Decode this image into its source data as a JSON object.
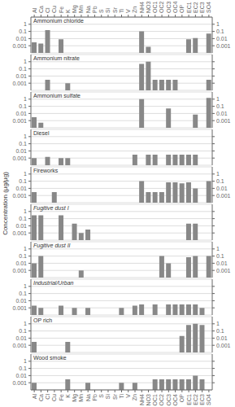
{
  "chart_data": [
    {
      "type": "bar",
      "title": "Ammonium chloride",
      "ylabel": "Concentration (μg/μg)",
      "categories": [
        "Al",
        "Ca",
        "Cl",
        "Cu",
        "Fe",
        "K",
        "Mg",
        "Mn",
        "Na",
        "Pb",
        "S",
        "Si",
        "Sr",
        "Ti",
        "V",
        "Zn",
        "NH4",
        "NO3",
        "OC1",
        "OC2",
        "OC3",
        "OC4",
        "OP",
        "EC1",
        "EC2",
        "EC3",
        "SO4"
      ],
      "values": [
        0.003,
        0.002,
        0.15,
        null,
        0.008,
        null,
        null,
        null,
        null,
        null,
        null,
        null,
        null,
        0.0001,
        null,
        null,
        0.1,
        0.0007,
        null,
        null,
        null,
        null,
        null,
        0.008,
        0.012,
        null,
        0.05
      ],
      "color": "#888888",
      "log": "y",
      "ylim": [
        0.0001,
        10
      ],
      "yticks": [
        0.001,
        0.01,
        0.1,
        1
      ],
      "grid": true
    },
    {
      "type": "bar",
      "title": "Ammonium nitrate",
      "categories": [
        "Al",
        "Ca",
        "Cl",
        "Cu",
        "Fe",
        "K",
        "Mg",
        "Mn",
        "Na",
        "Pb",
        "S",
        "Si",
        "Sr",
        "Ti",
        "V",
        "Zn",
        "NH4",
        "NO3",
        "OC1",
        "OC2",
        "OC3",
        "OC4",
        "OP",
        "EC1",
        "EC2",
        "EC3",
        "SO4"
      ],
      "values": [
        null,
        null,
        0.003,
        null,
        null,
        0.001,
        null,
        null,
        null,
        null,
        null,
        null,
        null,
        null,
        null,
        null,
        0.5,
        1,
        0.003,
        0.003,
        0.003,
        0.003,
        null,
        null,
        null,
        null,
        0.003
      ],
      "color": "#888888",
      "log": "y",
      "ylim": [
        0.0001,
        10
      ],
      "yticks": [
        0.001,
        0.01,
        0.1,
        1
      ],
      "grid": true,
      "tick_labels": "y"
    },
    {
      "type": "bar",
      "title": "Ammonium sulfate",
      "categories": [
        "Al",
        "Ca",
        "Cl",
        "Cu",
        "Fe",
        "K",
        "Mg",
        "Mn",
        "Na",
        "Pb",
        "S",
        "Si",
        "Sr",
        "Ti",
        "V",
        "Zn",
        "NH4",
        "NO3",
        "OC1",
        "OC2",
        "OC3",
        "OC4",
        "OP",
        "EC1",
        "EC2",
        "EC3",
        "SO4"
      ],
      "values": [
        0.003,
        0.0005,
        null,
        null,
        null,
        null,
        null,
        null,
        null,
        null,
        null,
        null,
        null,
        null,
        null,
        null,
        1,
        null,
        null,
        null,
        0.05,
        null,
        null,
        null,
        0.007,
        null,
        1.5
      ],
      "color": "#888888",
      "log": "y",
      "ylim": [
        0.0001,
        10
      ],
      "yticks": [
        0.001,
        0.01,
        0.1,
        1
      ],
      "grid": true,
      "tick_labels": "y"
    },
    {
      "type": "bar",
      "title": "Diesel",
      "categories": [
        "Al",
        "Ca",
        "Cl",
        "Cu",
        "Fe",
        "K",
        "Mg",
        "Mn",
        "Na",
        "Pb",
        "S",
        "Si",
        "Sr",
        "Ti",
        "V",
        "Zn",
        "NH4",
        "NO3",
        "OC1",
        "OC2",
        "OC3",
        "OC4",
        "OP",
        "EC1",
        "EC2",
        "EC3",
        "SO4"
      ],
      "values": [
        0.001,
        null,
        0.0015,
        null,
        0.001,
        0.001,
        null,
        null,
        null,
        null,
        null,
        null,
        null,
        null,
        null,
        0.003,
        null,
        0.003,
        0.003,
        null,
        0.003,
        0.003,
        0.003,
        0.003,
        0.003,
        null,
        null
      ],
      "color": "#888888",
      "log": "y",
      "ylim": [
        0.0001,
        10
      ],
      "yticks": [
        0.001,
        0.01,
        0.1,
        1
      ],
      "grid": true,
      "tick_labels": "y"
    },
    {
      "type": "bar",
      "title": "Fireworks",
      "categories": [
        "Al",
        "Ca",
        "Cl",
        "Cu",
        "Fe",
        "K",
        "Mg",
        "Mn",
        "Na",
        "Pb",
        "S",
        "Si",
        "Sr",
        "Ti",
        "V",
        "Zn",
        "NH4",
        "NO3",
        "OC1",
        "OC2",
        "OC3",
        "OC4",
        "OP",
        "EC1",
        "EC2",
        "EC3",
        "SO4"
      ],
      "values": [
        0.003,
        null,
        null,
        0.003,
        null,
        null,
        null,
        null,
        null,
        null,
        null,
        null,
        null,
        null,
        null,
        null,
        0.1,
        0.003,
        0.003,
        0.003,
        0.07,
        0.07,
        0.05,
        0.07,
        0.01,
        null,
        0.1
      ],
      "color": "#888888",
      "log": "y",
      "ylim": [
        0.0001,
        10
      ],
      "yticks": [
        0.001,
        0.01,
        0.1,
        1
      ],
      "grid": true,
      "tick_labels": "y"
    },
    {
      "type": "bar",
      "title": "Fugitive dust I",
      "categories": [
        "Al",
        "Ca",
        "Cl",
        "Cu",
        "Fe",
        "K",
        "Mg",
        "Mn",
        "Na",
        "Pb",
        "S",
        "Si",
        "Sr",
        "Ti",
        "V",
        "Zn",
        "NH4",
        "NO3",
        "OC1",
        "OC2",
        "OC3",
        "OC4",
        "OP",
        "EC1",
        "EC2",
        "EC3",
        "SO4"
      ],
      "values": [
        0.3,
        0.3,
        null,
        null,
        0.3,
        null,
        0.02,
        0.001,
        0.003,
        null,
        null,
        null,
        null,
        0.0001,
        null,
        null,
        null,
        null,
        null,
        null,
        null,
        null,
        null,
        0.02,
        0.02,
        null,
        null
      ],
      "color": "#888888",
      "log": "y",
      "ylim": [
        0.0001,
        10
      ],
      "yticks": [
        0.001,
        0.01,
        0.1,
        1
      ],
      "grid": true,
      "tick_labels": "y"
    },
    {
      "type": "bar",
      "title": "Fugitive dust II",
      "categories": [
        "Al",
        "Ca",
        "Cl",
        "Cu",
        "Fe",
        "K",
        "Mg",
        "Mn",
        "Na",
        "Pb",
        "S",
        "Si",
        "Sr",
        "Ti",
        "V",
        "Zn",
        "NH4",
        "NO3",
        "OC1",
        "OC2",
        "OC3",
        "OC4",
        "OP",
        "EC1",
        "EC2",
        "EC3",
        "SO4"
      ],
      "values": [
        0.01,
        0.1,
        null,
        null,
        null,
        null,
        null,
        0.001,
        null,
        null,
        null,
        null,
        null,
        null,
        null,
        null,
        null,
        null,
        null,
        0.1,
        0.01,
        null,
        null,
        0.07,
        0.1,
        null,
        0.1
      ],
      "color": "#888888",
      "log": "y",
      "ylim": [
        0.0001,
        10
      ],
      "yticks": [
        0.001,
        0.01,
        0.1,
        1
      ],
      "grid": true,
      "tick_labels": "y"
    },
    {
      "type": "bar",
      "title": "Industrial/Urban",
      "categories": [
        "Al",
        "Ca",
        "Cl",
        "Cu",
        "Fe",
        "K",
        "Mg",
        "Mn",
        "Na",
        "Pb",
        "S",
        "Si",
        "Sr",
        "Ti",
        "V",
        "Zn",
        "NH4",
        "NO3",
        "OC1",
        "OC2",
        "OC3",
        "OC4",
        "OP",
        "EC1",
        "EC2",
        "EC3",
        "SO4"
      ],
      "values": [
        0.002,
        0.001,
        null,
        null,
        0.002,
        null,
        0.001,
        null,
        0.001,
        null,
        null,
        null,
        null,
        0.001,
        null,
        0.002,
        0.003,
        null,
        0.003,
        null,
        0.003,
        0.003,
        0.003,
        0.003,
        0.003,
        0.001,
        null
      ],
      "color": "#888888",
      "log": "y",
      "ylim": [
        0.0001,
        10
      ],
      "yticks": [
        0.001,
        0.01,
        0.1,
        1
      ],
      "grid": true,
      "tick_labels": "y"
    },
    {
      "type": "bar",
      "title": "OP rich",
      "categories": [
        "Al",
        "Ca",
        "Cl",
        "Cu",
        "Fe",
        "K",
        "Mg",
        "Mn",
        "Na",
        "Pb",
        "S",
        "Si",
        "Sr",
        "Ti",
        "V",
        "Zn",
        "NH4",
        "NO3",
        "OC1",
        "OC2",
        "OC3",
        "OC4",
        "OP",
        "EC1",
        "EC2",
        "EC3",
        "SO4"
      ],
      "values": [
        0.003,
        null,
        null,
        null,
        null,
        0.003,
        null,
        null,
        null,
        null,
        null,
        null,
        null,
        null,
        null,
        null,
        null,
        null,
        null,
        null,
        null,
        null,
        0.02,
        0.7,
        1,
        0.7,
        null
      ],
      "color": "#888888",
      "log": "y",
      "ylim": [
        0.0001,
        10
      ],
      "yticks": [
        0.001,
        0.01,
        0.1,
        1
      ],
      "grid": true,
      "tick_labels": "y"
    },
    {
      "type": "bar",
      "title": "Wood smoke",
      "categories": [
        "Al",
        "Ca",
        "Cl",
        "Cu",
        "Fe",
        "K",
        "Mg",
        "Mn",
        "Na",
        "Pb",
        "S",
        "Si",
        "Sr",
        "Ti",
        "V",
        "Zn",
        "NH4",
        "NO3",
        "OC1",
        "OC2",
        "OC3",
        "OC4",
        "OP",
        "EC1",
        "EC2",
        "EC3",
        "SO4"
      ],
      "values": [
        0.001,
        null,
        null,
        null,
        null,
        0.003,
        null,
        null,
        0.001,
        null,
        null,
        null,
        null,
        0.001,
        null,
        0.001,
        null,
        null,
        0.003,
        0.003,
        0.003,
        0.003,
        0.003,
        0.003,
        0.01,
        0.003,
        null
      ],
      "color": "#888888",
      "log": "y",
      "ylim": [
        0.0001,
        10
      ],
      "yticks": [
        0.001,
        0.01,
        0.1,
        1
      ],
      "grid": true
    }
  ]
}
